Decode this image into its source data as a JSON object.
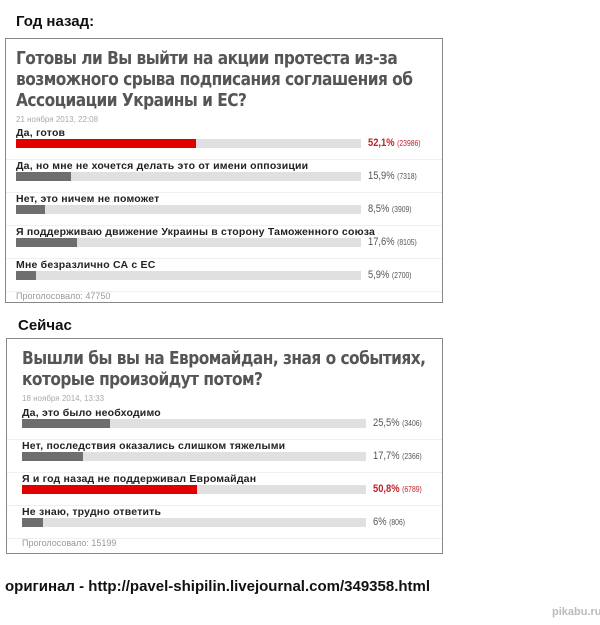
{
  "sections": [
    "Год назад:",
    "Сейчас"
  ],
  "chart_data": [
    {
      "type": "bar",
      "orientation": "horizontal",
      "title": "Готовы ли Вы выйти на акции протеста из-за возможного срыва подписания соглашения об Ассоциации Украины и ЕС?",
      "title_lines": [
        "Готовы ли Вы выйти на акции протеста из-за",
        "возможного срыва подписания соглашения об",
        "Ассоциации Украины и ЕС?"
      ],
      "date": "21 ноября 2013, 22:08",
      "categories": [
        "Да, готов",
        "Да, но мне не хочется делать это от имени оппозиции",
        "Нет, это ничем не поможет",
        "Я поддерживаю движение Украины в сторону Таможенного союза",
        "Мне безразлично СА с ЕС"
      ],
      "values": [
        52.1,
        15.9,
        8.5,
        17.6,
        5.9
      ],
      "percent_labels": [
        "52,1%",
        "15,9%",
        "8,5%",
        "17,6%",
        "5,9%"
      ],
      "counts": [
        "(23986)",
        "(7318)",
        "(3909)",
        "(8105)",
        "(2700)"
      ],
      "highlight_index": 0,
      "voted": "Проголосовало: 47750",
      "xlim": [
        0,
        100
      ]
    },
    {
      "type": "bar",
      "orientation": "horizontal",
      "title": "Вышли бы вы на Евромайдан, зная о событиях, которые произойдут потом?",
      "title_lines": [
        "Вышли бы вы на Евромайдан, зная о событиях,",
        "которые произойдут потом?"
      ],
      "date": "18 ноября 2014, 13:33",
      "categories": [
        "Да, это было необходимо",
        "Нет, последствия оказались слишком тяжелыми",
        "Я и год назад не поддерживал Евромайдан",
        "Не знаю, трудно ответить"
      ],
      "values": [
        25.5,
        17.7,
        50.8,
        6
      ],
      "percent_labels": [
        "25,5%",
        "17,7%",
        "50,8%",
        "6%"
      ],
      "counts": [
        "(3406)",
        "(2366)",
        "(6789)",
        "(806)"
      ],
      "highlight_index": 2,
      "voted": "Проголосовало: 15199",
      "xlim": [
        0,
        100
      ]
    }
  ],
  "colors": {
    "highlight": "#e00000",
    "bar": "#6e6e6e",
    "track": "#e0e0e0"
  },
  "footer": "оригинал - http://pavel-shipilin.livejournal.com/349358.html",
  "watermark": "pikabu.ru"
}
